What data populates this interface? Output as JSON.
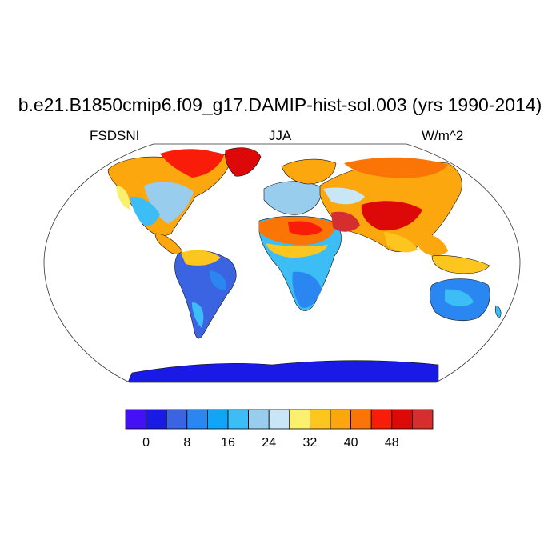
{
  "map": {
    "title": "b.e21.B1850cmip6.f09_g17.DAMIP-hist-sol.003 (yrs 1990-2014)",
    "variable": "FSDSNI",
    "season": "JJA",
    "units": "W/m^2",
    "projection": "Robinson",
    "ocean_masked": true
  },
  "colorbar": {
    "colors": [
      "#4410f5",
      "#1a1ae6",
      "#3a64e2",
      "#2a86f0",
      "#11a5f5",
      "#3cbdf5",
      "#98cdee",
      "#c8e6f6",
      "#fbef6e",
      "#fcc61f",
      "#fca70d",
      "#fb7406",
      "#f91d09",
      "#dd0909",
      "#d62e2e"
    ],
    "tick_labels": [
      "0",
      "8",
      "16",
      "24",
      "32",
      "40",
      "48"
    ],
    "tick_positions": [
      1,
      3,
      5,
      7,
      9,
      11,
      13
    ]
  }
}
